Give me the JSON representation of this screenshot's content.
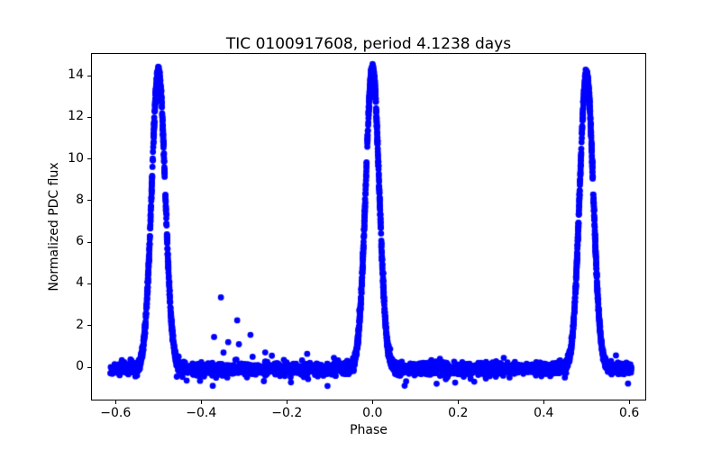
{
  "figure": {
    "background": "#ffffff",
    "spine_color": "#000000",
    "text_color": "#000000"
  },
  "chart_data": {
    "type": "scatter",
    "title": "TIC 0100917608, period 4.1238 days",
    "xlabel": "Phase",
    "ylabel": "Normalized PDC flux",
    "marker_color": "#0000ff",
    "marker_radius_px": 3.4,
    "grid": false,
    "legend": null,
    "xlim": [
      -0.6575,
      0.6395
    ],
    "ylim": [
      -1.6,
      15.08
    ],
    "x_ticks": [
      -0.6,
      -0.4,
      -0.2,
      0.0,
      0.2,
      0.4,
      0.6
    ],
    "x_tick_labels": [
      "−0.6",
      "−0.4",
      "−0.2",
      "0.0",
      "0.2",
      "0.4",
      "0.6"
    ],
    "y_ticks": [
      0,
      2,
      4,
      6,
      8,
      10,
      12,
      14
    ],
    "y_tick_labels": [
      "0",
      "2",
      "4",
      "6",
      "8",
      "10",
      "12",
      "14"
    ],
    "description": "Phase-folded light curve: flat noisy baseline near flux 0 with three narrow eclipse-like peaks at phases -0.5, 0.0 and +0.5 rising to ~14.3, plus a handful of scattered outlier points between phase -0.37 and -0.2 and one low point near phase -0.1.",
    "data_model": {
      "random_seed": 7,
      "phase_range": [
        -0.613,
        0.605
      ],
      "baseline": {
        "n": 3000,
        "mean": -0.07,
        "sigma": 0.13,
        "fat_tail_fraction": 0.07,
        "fat_tail_multiplier": 2.3
      },
      "peaks": [
        {
          "center": -0.5,
          "amplitude": 14.3,
          "sigma": 0.0157,
          "n_extra": 520,
          "sample_halfwidth": 0.052,
          "point_noise": 0.09,
          "gap_side": "descending",
          "gap_flux": [
            8.35,
            9.05
          ]
        },
        {
          "center": 0.0,
          "amplitude": 14.45,
          "sigma": 0.0157,
          "n_extra": 520,
          "sample_halfwidth": 0.052,
          "point_noise": 0.09,
          "gap_side": "ascending",
          "gap_flux": [
            9.85,
            10.45
          ]
        },
        {
          "center": 0.5,
          "amplitude": 14.2,
          "sigma": 0.0157,
          "n_extra": 520,
          "sample_halfwidth": 0.052,
          "point_noise": 0.09,
          "gap_side": "descending",
          "gap_flux": [
            8.35,
            9.05
          ]
        }
      ],
      "outliers": [
        [
          -0.37,
          1.45
        ],
        [
          -0.354,
          3.35
        ],
        [
          -0.348,
          0.7
        ],
        [
          -0.337,
          1.2
        ],
        [
          -0.316,
          2.25
        ],
        [
          -0.312,
          1.1
        ],
        [
          -0.285,
          1.55
        ],
        [
          -0.28,
          0.5
        ],
        [
          -0.235,
          0.55
        ],
        [
          -0.207,
          0.35
        ],
        [
          -0.105,
          -0.9
        ],
        [
          -0.09,
          0.45
        ]
      ]
    }
  }
}
